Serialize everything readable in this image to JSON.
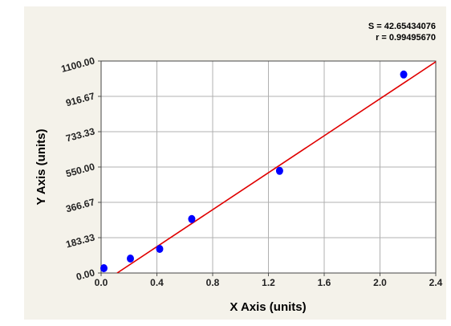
{
  "chart_data": {
    "type": "scatter",
    "x_label": "X Axis (units)",
    "y_label": "Y Axis (units)",
    "annotations": [
      "S = 42.65434076",
      "r = 0.99495670"
    ],
    "xlim": [
      0,
      2.4
    ],
    "xticks": [
      {
        "value": 0,
        "label": "0.0"
      },
      0.4,
      0.8,
      1.2,
      1.6,
      {
        "value": 2,
        "label": "2.0"
      },
      2.4
    ],
    "ylim": [
      0,
      1100
    ],
    "yticks": [
      {
        "value": 0,
        "label": "0.00"
      },
      183.33,
      366.67,
      {
        "value": 550,
        "label": "550.00"
      },
      733.33,
      916.67,
      {
        "value": 1100,
        "label": "1100.00"
      }
    ],
    "grid": true,
    "series": [
      {
        "color": "#0000ff",
        "x": [
          0.02,
          0.21,
          0.42,
          0.65,
          1.28,
          2.17
        ],
        "values": [
          25,
          75,
          125,
          280,
          530,
          1030
        ]
      }
    ],
    "fit_line": {
      "color": "#e00000",
      "x": [
        0.115,
        2.4
      ],
      "values": [
        0,
        1096
      ]
    }
  }
}
